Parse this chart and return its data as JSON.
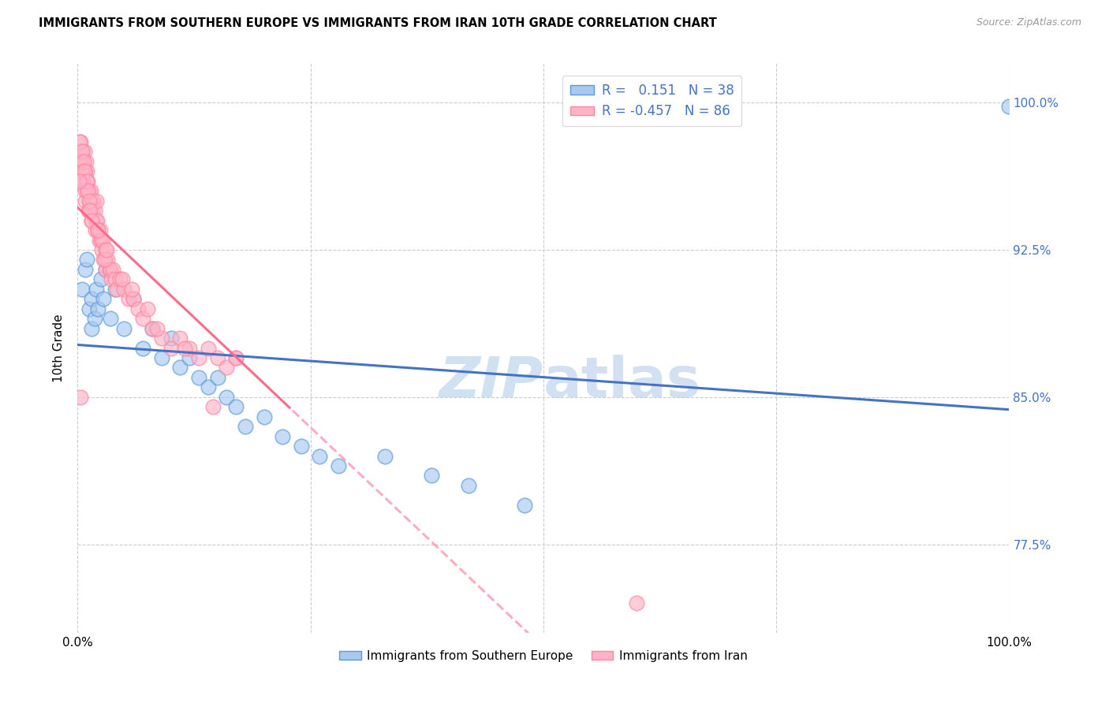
{
  "title": "IMMIGRANTS FROM SOUTHERN EUROPE VS IMMIGRANTS FROM IRAN 10TH GRADE CORRELATION CHART",
  "source": "Source: ZipAtlas.com",
  "ylabel": "10th Grade",
  "y_ticks": [
    77.5,
    85.0,
    92.5,
    100.0
  ],
  "y_tick_labels": [
    "77.5%",
    "85.0%",
    "92.5%",
    "100.0%"
  ],
  "legend_label1": "Immigrants from Southern Europe",
  "legend_label2": "Immigrants from Iran",
  "R1": 0.151,
  "N1": 38,
  "R2": -0.457,
  "N2": 86,
  "color_blue_fill": "#A8C8F0",
  "color_blue_edge": "#5B9BD5",
  "color_blue_line": "#4472C4",
  "color_pink_fill": "#FFB3C6",
  "color_pink_edge": "#FF85A0",
  "color_pink_line": "#FF6B8A",
  "color_axis_labels": "#4472C4",
  "background": "#FFFFFF",
  "watermark_zip": "ZIP",
  "watermark_atlas": "atlas",
  "blue_dots_x": [
    0.5,
    0.8,
    1.0,
    1.2,
    1.5,
    1.5,
    1.8,
    2.0,
    2.2,
    2.5,
    2.8,
    3.0,
    3.5,
    4.0,
    5.0,
    6.0,
    7.0,
    8.0,
    9.0,
    10.0,
    11.0,
    12.0,
    13.0,
    14.0,
    15.0,
    16.0,
    17.0,
    18.0,
    20.0,
    22.0,
    24.0,
    26.0,
    28.0,
    33.0,
    38.0,
    42.0,
    48.0,
    100.0
  ],
  "blue_dots_y": [
    90.5,
    91.5,
    92.0,
    89.5,
    90.0,
    88.5,
    89.0,
    90.5,
    89.5,
    91.0,
    90.0,
    91.5,
    89.0,
    90.5,
    88.5,
    90.0,
    87.5,
    88.5,
    87.0,
    88.0,
    86.5,
    87.0,
    86.0,
    85.5,
    86.0,
    85.0,
    84.5,
    83.5,
    84.0,
    83.0,
    82.5,
    82.0,
    81.5,
    82.0,
    81.0,
    80.5,
    79.5,
    99.8
  ],
  "pink_dots_x": [
    0.2,
    0.3,
    0.3,
    0.4,
    0.5,
    0.5,
    0.6,
    0.7,
    0.8,
    0.8,
    0.9,
    1.0,
    1.0,
    1.1,
    1.2,
    1.2,
    1.3,
    1.4,
    1.5,
    1.5,
    1.6,
    1.7,
    1.8,
    1.9,
    2.0,
    2.0,
    2.1,
    2.2,
    2.3,
    2.4,
    2.5,
    2.6,
    2.7,
    2.8,
    3.0,
    3.0,
    3.2,
    3.4,
    3.5,
    3.6,
    3.8,
    4.0,
    4.2,
    4.5,
    5.0,
    5.5,
    6.0,
    6.5,
    7.0,
    7.5,
    8.0,
    9.0,
    10.0,
    11.0,
    12.0,
    13.0,
    14.0,
    15.0,
    16.0,
    17.0,
    0.15,
    0.25,
    0.35,
    0.45,
    0.55,
    0.65,
    0.75,
    0.85,
    0.95,
    1.05,
    1.15,
    1.25,
    1.35,
    1.45,
    2.2,
    2.9,
    3.1,
    4.8,
    5.8,
    8.5,
    11.5,
    14.5,
    17.0,
    0.1,
    60.0,
    0.3
  ],
  "pink_dots_y": [
    97.5,
    98.0,
    96.5,
    97.0,
    97.5,
    96.0,
    96.5,
    97.5,
    96.5,
    95.0,
    97.0,
    96.5,
    95.5,
    96.0,
    95.5,
    94.5,
    95.0,
    95.5,
    95.0,
    94.0,
    94.5,
    95.0,
    94.5,
    93.5,
    94.0,
    95.0,
    94.0,
    93.5,
    93.0,
    93.5,
    93.0,
    92.5,
    93.0,
    92.0,
    92.5,
    91.5,
    92.0,
    91.5,
    91.5,
    91.0,
    91.5,
    91.0,
    90.5,
    91.0,
    90.5,
    90.0,
    90.0,
    89.5,
    89.0,
    89.5,
    88.5,
    88.0,
    87.5,
    88.0,
    87.5,
    87.0,
    87.5,
    87.0,
    86.5,
    87.0,
    97.0,
    98.0,
    96.5,
    97.5,
    96.0,
    97.0,
    96.5,
    95.5,
    96.0,
    95.5,
    94.5,
    95.0,
    94.5,
    94.0,
    93.5,
    92.0,
    92.5,
    91.0,
    90.5,
    88.5,
    87.5,
    84.5,
    87.0,
    96.0,
    74.5,
    85.0
  ],
  "pink_solid_max_x": 23.0,
  "xlim": [
    0,
    100
  ],
  "ylim": [
    73,
    102
  ]
}
